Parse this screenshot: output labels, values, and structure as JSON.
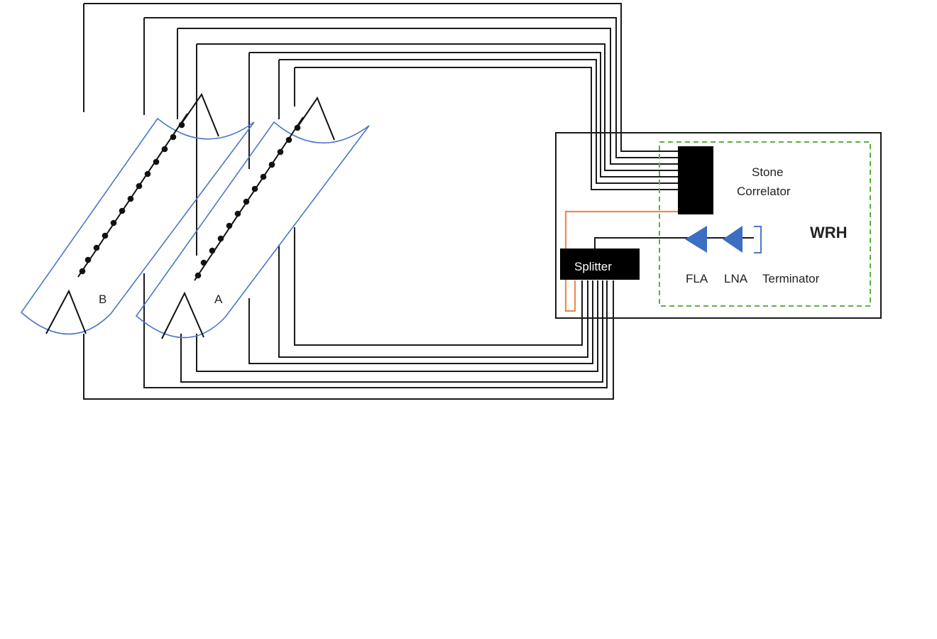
{
  "labels": {
    "antenna_a": "A",
    "antenna_b": "B",
    "correlator_line1": "Stone",
    "correlator_line2": "Correlator",
    "building": "WRH",
    "splitter": "Splitter",
    "fla": "FLA",
    "lna": "LNA",
    "terminator": "Terminator"
  },
  "colors": {
    "wire": "#1a1a1a",
    "trough": "#4a78c8",
    "splitter_feed": "#f08a4b",
    "boundary_dashed": "#5bb040",
    "amplifier": "#3b6fc4",
    "block": "#000000"
  },
  "icons": {
    "amplifier": "triangle-amplifier-icon",
    "terminator": "bracket-terminator-icon",
    "dipole": "cross-dipole-icon"
  }
}
